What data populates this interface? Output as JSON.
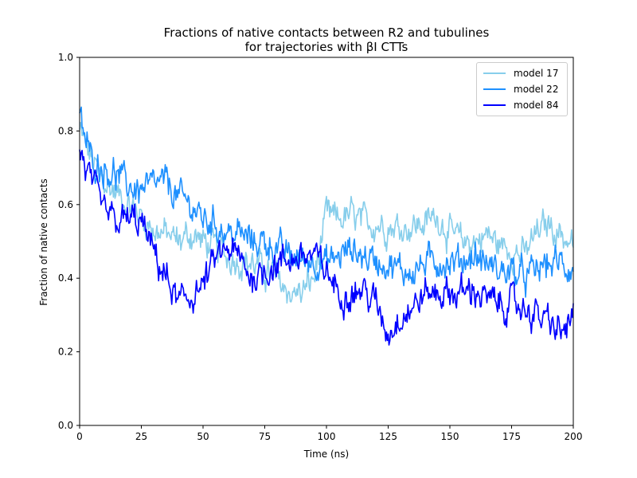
{
  "chart_data": {
    "type": "line",
    "title": [
      "Fractions of native contacts between R2 and tubulines",
      "for trajectories with βI CTTs"
    ],
    "xlabel": "Time (ns)",
    "ylabel": "Fraction of native contacts",
    "xlim": [
      0,
      200
    ],
    "ylim": [
      0,
      1.0
    ],
    "xticks": [
      "0",
      "25",
      "50",
      "75",
      "100",
      "125",
      "150",
      "175",
      "200"
    ],
    "yticks": [
      "0.0",
      "0.2",
      "0.4",
      "0.6",
      "0.8",
      "1.0"
    ],
    "grid": false,
    "legend_position": "top-right",
    "series": [
      {
        "name": "model 17",
        "color": "#87CEEB",
        "x": [
          0,
          5,
          10,
          15,
          20,
          25,
          30,
          35,
          40,
          45,
          50,
          55,
          60,
          65,
          70,
          75,
          80,
          85,
          90,
          95,
          100,
          105,
          110,
          115,
          120,
          125,
          130,
          135,
          140,
          145,
          150,
          155,
          160,
          165,
          170,
          175,
          180,
          185,
          190,
          195,
          200
        ],
        "values": [
          0.8,
          0.72,
          0.66,
          0.63,
          0.6,
          0.57,
          0.53,
          0.52,
          0.5,
          0.52,
          0.5,
          0.48,
          0.46,
          0.45,
          0.44,
          0.42,
          0.4,
          0.36,
          0.36,
          0.4,
          0.57,
          0.56,
          0.57,
          0.55,
          0.55,
          0.54,
          0.54,
          0.54,
          0.55,
          0.57,
          0.52,
          0.5,
          0.5,
          0.52,
          0.49,
          0.48,
          0.46,
          0.52,
          0.55,
          0.52,
          0.49
        ]
      },
      {
        "name": "model 22",
        "color": "#1E90FF",
        "x": [
          0,
          5,
          10,
          15,
          20,
          25,
          30,
          35,
          40,
          45,
          50,
          55,
          60,
          65,
          70,
          75,
          80,
          85,
          90,
          95,
          100,
          105,
          110,
          115,
          120,
          125,
          130,
          135,
          140,
          145,
          150,
          155,
          160,
          165,
          170,
          175,
          180,
          185,
          190,
          195,
          200
        ],
        "values": [
          0.83,
          0.72,
          0.7,
          0.68,
          0.65,
          0.64,
          0.65,
          0.66,
          0.62,
          0.6,
          0.56,
          0.55,
          0.52,
          0.52,
          0.5,
          0.5,
          0.48,
          0.46,
          0.45,
          0.45,
          0.44,
          0.46,
          0.48,
          0.46,
          0.45,
          0.44,
          0.42,
          0.42,
          0.44,
          0.45,
          0.44,
          0.45,
          0.46,
          0.44,
          0.42,
          0.42,
          0.4,
          0.42,
          0.44,
          0.44,
          0.42
        ]
      },
      {
        "name": "model 84",
        "color": "#0000FF",
        "x": [
          0,
          5,
          10,
          15,
          20,
          25,
          30,
          35,
          40,
          45,
          50,
          55,
          60,
          65,
          70,
          75,
          80,
          85,
          90,
          95,
          100,
          105,
          110,
          115,
          120,
          125,
          130,
          135,
          140,
          145,
          150,
          155,
          160,
          165,
          170,
          175,
          180,
          185,
          190,
          195,
          200
        ],
        "values": [
          0.75,
          0.65,
          0.58,
          0.55,
          0.56,
          0.55,
          0.47,
          0.4,
          0.33,
          0.35,
          0.38,
          0.45,
          0.48,
          0.45,
          0.4,
          0.42,
          0.44,
          0.45,
          0.46,
          0.46,
          0.42,
          0.36,
          0.36,
          0.37,
          0.33,
          0.25,
          0.3,
          0.32,
          0.36,
          0.36,
          0.36,
          0.36,
          0.37,
          0.34,
          0.33,
          0.33,
          0.32,
          0.3,
          0.28,
          0.25,
          0.29
        ]
      }
    ]
  }
}
